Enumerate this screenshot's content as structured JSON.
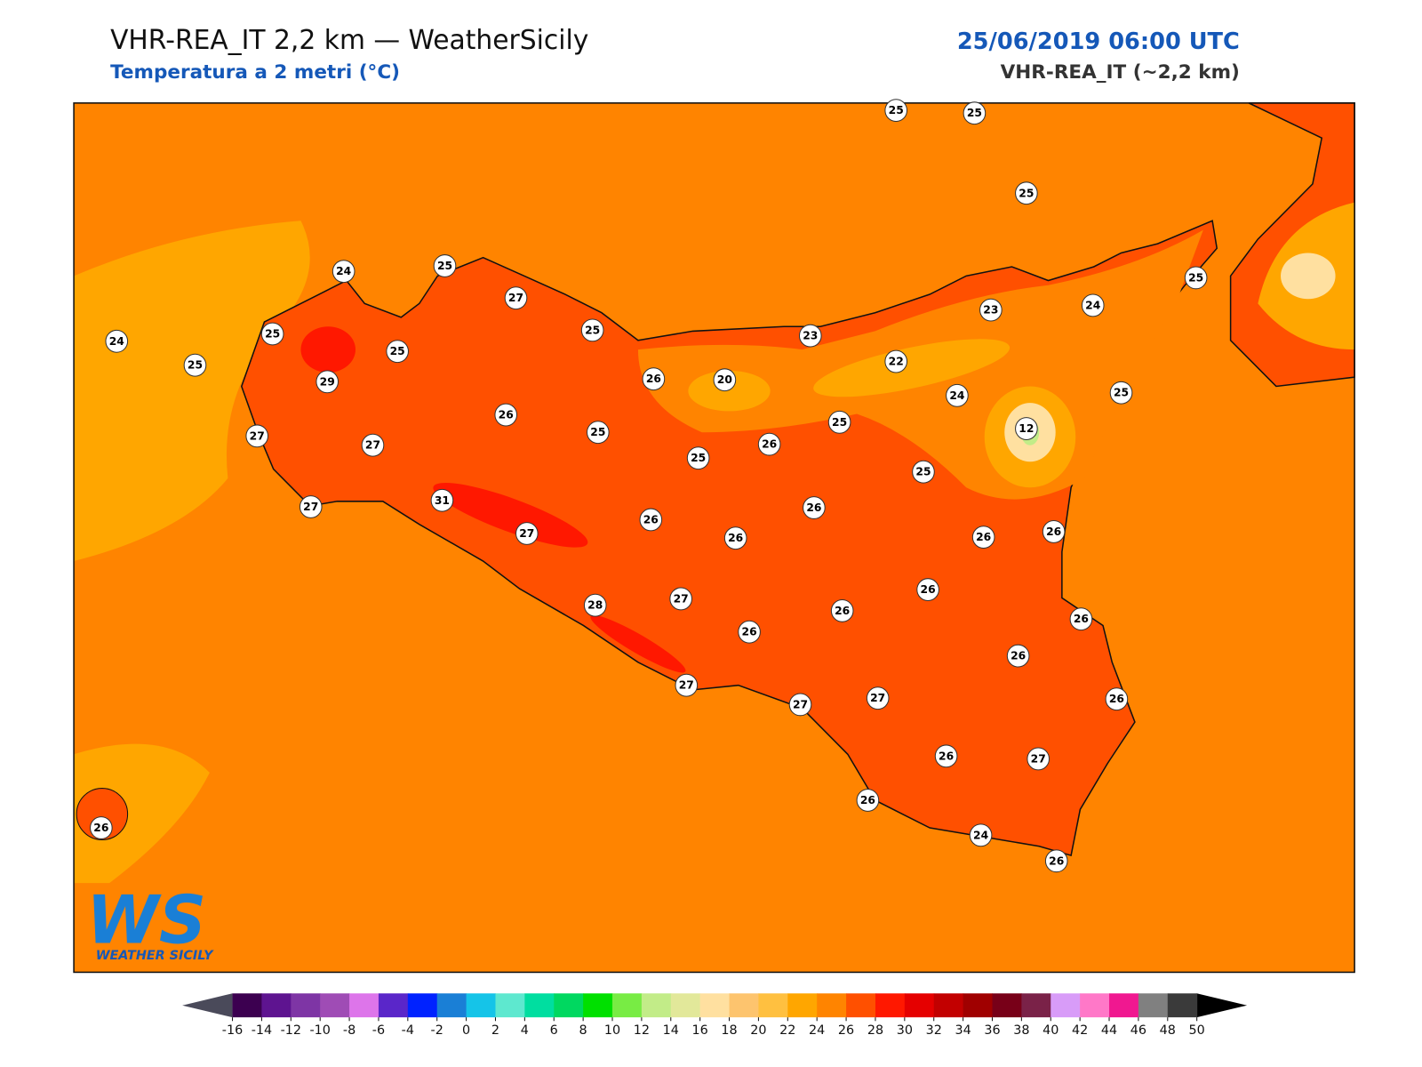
{
  "header": {
    "title": "VHR-REA_IT 2,2 km — WeatherSicily",
    "subtitle": "Temperatura a 2 metri (°C)",
    "datetime": "25/06/2019 06:00 UTC",
    "model": "VHR-REA_IT (~2,2 km)"
  },
  "stations": [
    25,
    25,
    25,
    24,
    25,
    27,
    25,
    24,
    23,
    24,
    25,
    25,
    25,
    25,
    23,
    22,
    29,
    26,
    20,
    24,
    25,
    26,
    25,
    25,
    12,
    27,
    27,
    25,
    26,
    25,
    31,
    27,
    26,
    27,
    26,
    26,
    26,
    26,
    26,
    27,
    28,
    26,
    26,
    26,
    26,
    27,
    27,
    27,
    26,
    26,
    27,
    26,
    26,
    24,
    26
  ],
  "colorbar": {
    "ticks": [
      -16,
      -14,
      -12,
      -10,
      -8,
      -6,
      -4,
      -2,
      0,
      2,
      4,
      6,
      8,
      10,
      12,
      14,
      16,
      18,
      20,
      22,
      24,
      26,
      28,
      30,
      32,
      34,
      36,
      38,
      40,
      42,
      44,
      46,
      48,
      50
    ],
    "colors": [
      "#3c0050",
      "#5e1490",
      "#7e35a5",
      "#9f4cb5",
      "#dd75ea",
      "#5a26c9",
      "#0022ff",
      "#1a7fd6",
      "#15c4e8",
      "#5ee8cf",
      "#00dea0",
      "#00d860",
      "#00e000",
      "#78ec44",
      "#c2ec88",
      "#e2e89a",
      "#ffe0a0",
      "#fdc46e",
      "#ffc040",
      "#ffa600",
      "#ff8400",
      "#ff5000",
      "#ff1800",
      "#e50000",
      "#c20000",
      "#a00000",
      "#780018",
      "#7a2248",
      "#d89cf8",
      "#ff78c8",
      "#f01890",
      "#808080",
      "#3a3a3a"
    ],
    "under_color": "#4a4a5a",
    "over_color": "#000000"
  },
  "logo": {
    "mark": "WS",
    "text": "WEATHER SICILY"
  }
}
